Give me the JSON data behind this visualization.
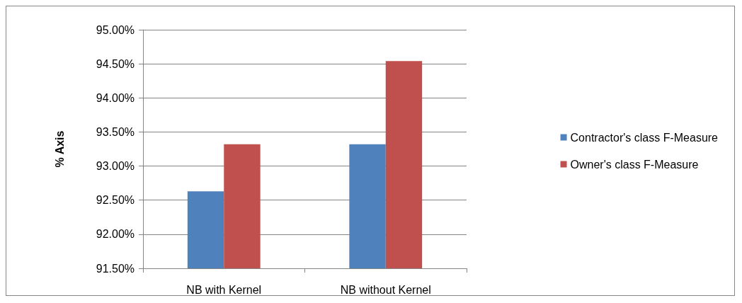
{
  "chart_data": {
    "type": "bar",
    "ylabel": "% Axis",
    "categories": [
      "NB with Kernel",
      "NB without Kernel"
    ],
    "series": [
      {
        "name": "Contractor's class F-Measure",
        "color": "#4f81bd",
        "values": [
          92.63,
          93.32
        ]
      },
      {
        "name": "Owner's class F-Measure",
        "color": "#c0504d",
        "values": [
          93.32,
          94.54
        ]
      }
    ],
    "ylim": [
      91.5,
      95
    ],
    "yticks": [
      {
        "value": 91.5,
        "label": "91.50%"
      },
      {
        "value": 92,
        "label": "92.00%"
      },
      {
        "value": 92.5,
        "label": "92.50%"
      },
      {
        "value": 93,
        "label": "93.00%"
      },
      {
        "value": 93.5,
        "label": "93.50%"
      },
      {
        "value": 94,
        "label": "94.00%"
      },
      {
        "value": 94.5,
        "label": "94.50%"
      },
      {
        "value": 95,
        "label": "95.00%"
      }
    ],
    "grid": "y",
    "legend": "right"
  }
}
